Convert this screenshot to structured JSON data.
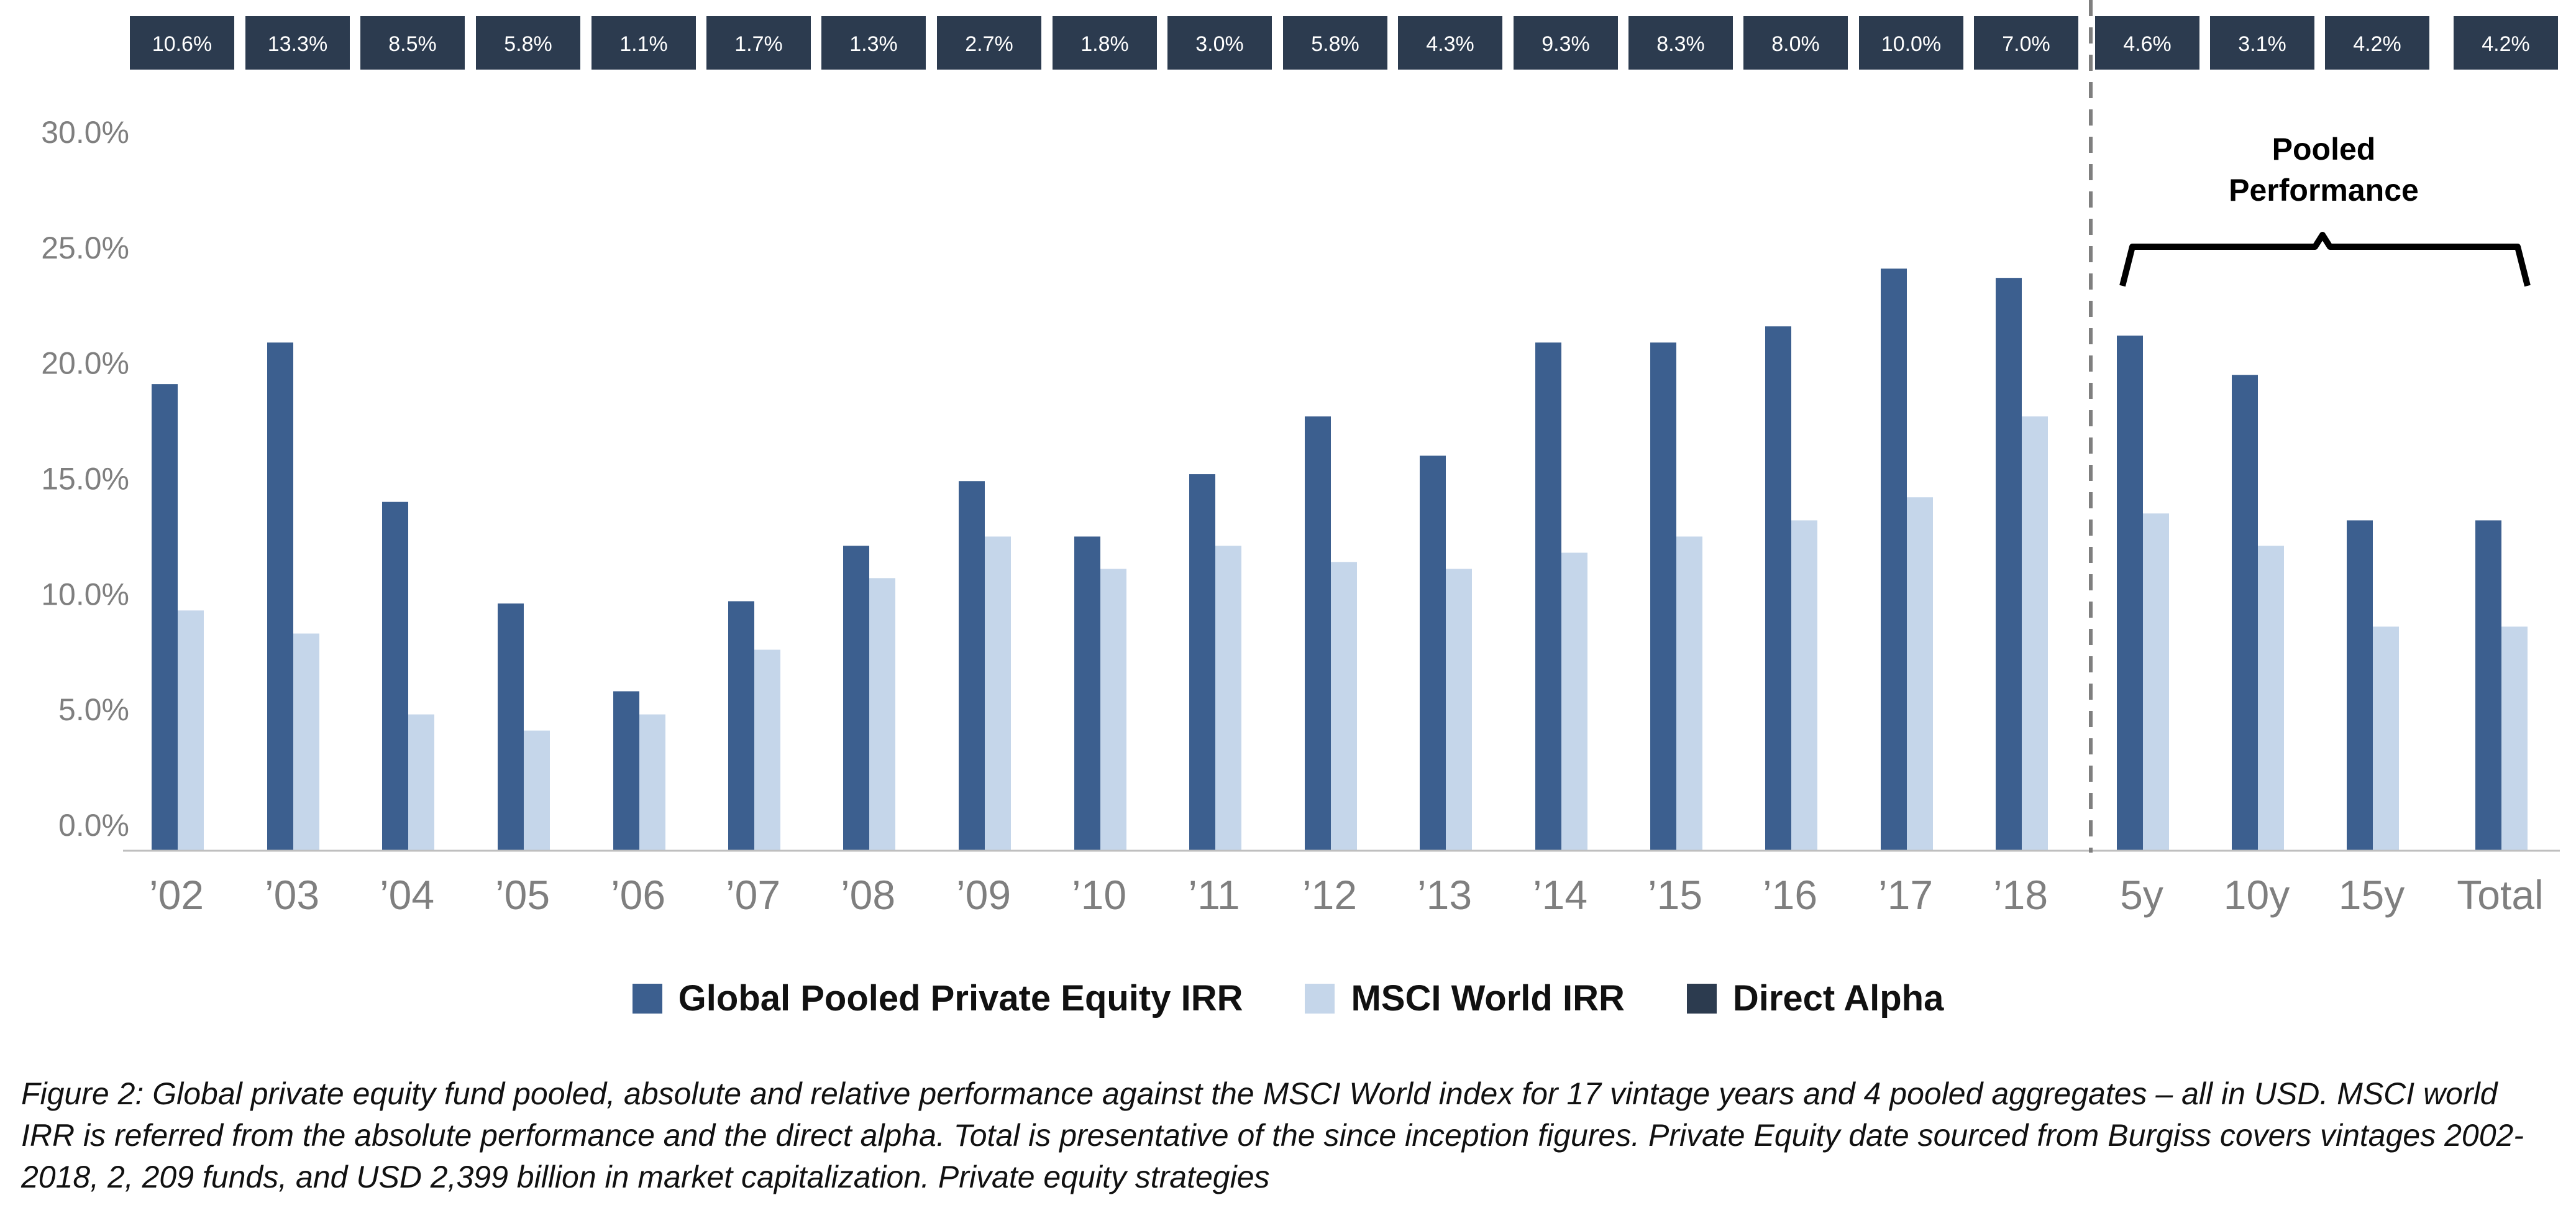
{
  "chart_data": {
    "type": "bar",
    "categories": [
      "’02",
      "’03",
      "’04",
      "’05",
      "’06",
      "’07",
      "’08",
      "’09",
      "’10",
      "’11",
      "’12",
      "’13",
      "’14",
      "’15",
      "’16",
      "’17",
      "’18",
      "5y",
      "10y",
      "15y",
      "Total"
    ],
    "series": [
      {
        "name": "Global Pooled Private Equity IRR",
        "color": "#3c5f8f",
        "values": [
          19.1,
          20.9,
          14.0,
          9.6,
          5.8,
          9.7,
          12.1,
          14.9,
          12.5,
          15.2,
          17.7,
          16.0,
          20.9,
          20.9,
          21.6,
          24.1,
          23.7,
          21.2,
          19.5,
          13.2,
          13.2
        ]
      },
      {
        "name": "MSCI World IRR",
        "color": "#c5d6ea",
        "values": [
          9.3,
          8.3,
          4.8,
          4.1,
          4.8,
          7.6,
          10.7,
          12.5,
          11.1,
          12.1,
          11.4,
          11.1,
          11.8,
          12.5,
          13.2,
          14.2,
          17.7,
          13.5,
          12.1,
          8.6,
          8.6
        ]
      },
      {
        "name": "Direct Alpha",
        "color": "#2c3b4f",
        "labels": [
          "10.6%",
          "13.3%",
          "8.5%",
          "5.8%",
          "1.1%",
          "1.7%",
          "1.3%",
          "2.7%",
          "1.8%",
          "3.0%",
          "5.8%",
          "4.3%",
          "9.3%",
          "8.3%",
          "8.0%",
          "10.0%",
          "7.0%",
          "4.6%",
          "3.1%",
          "4.2%",
          "4.2%"
        ]
      }
    ],
    "yticks": [
      "30.0%",
      "25.0%",
      "20.0%",
      "15.0%",
      "10.0%",
      "5.0%",
      "0.0%"
    ],
    "ylim": [
      0,
      30
    ],
    "grid": false,
    "legend_position": "bottom",
    "annotation": {
      "bracket_label_line1": "Pooled",
      "bracket_label_line2": "Performance"
    }
  },
  "colors": {
    "axis_text": "#7f7f7f",
    "axis_line": "#bfbfbf",
    "divider": "#7f7f7f",
    "alpha_box_text": "#ffffff"
  },
  "caption": "Figure 2: Global private equity fund pooled, absolute and relative performance against the MSCI World index for 17 vintage years and 4 pooled aggregates – all in USD. MSCI world IRR is referred from the absolute performance and the direct alpha. Total is presentative of the since inception figures. Private Equity date sourced from Burgiss covers vintages 2002-2018, 2, 209 funds, and USD 2,399 billion in market capitalization. Private equity strategies"
}
